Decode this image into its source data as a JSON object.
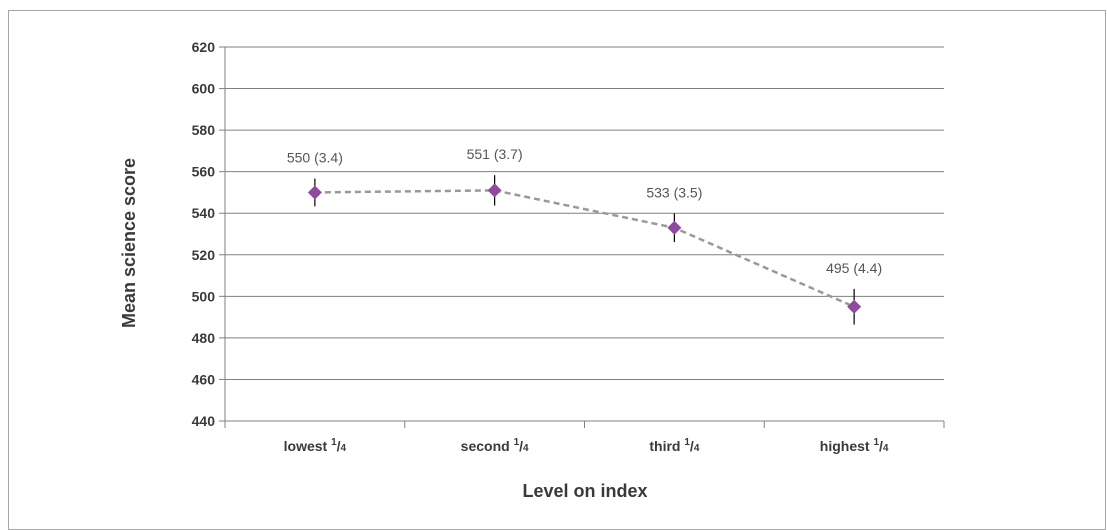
{
  "chart_data": {
    "type": "line",
    "categories": [
      {
        "text": "lowest",
        "frac_num": "1",
        "frac_den": "4"
      },
      {
        "text": "second",
        "frac_num": "1",
        "frac_den": "4"
      },
      {
        "text": "third",
        "frac_num": "1",
        "frac_den": "4"
      },
      {
        "text": "highest",
        "frac_num": "1",
        "frac_den": "4"
      }
    ],
    "values": [
      550,
      551,
      533,
      495
    ],
    "errors": [
      6.7,
      7.3,
      6.9,
      8.6
    ],
    "labels": [
      "550 (3.4)",
      "551 (3.7)",
      "533 (3.5)",
      "495 (4.4)"
    ],
    "xlabel": "Level on index",
    "ylabel": "Mean science score",
    "ylim": [
      440,
      620
    ],
    "yticks": [
      440,
      460,
      480,
      500,
      520,
      540,
      560,
      580,
      600,
      620
    ],
    "grid": true,
    "colors": {
      "marker": "#8e4a9c",
      "line": "#999999",
      "errorbar": "#000000",
      "grid": "#808080"
    }
  }
}
